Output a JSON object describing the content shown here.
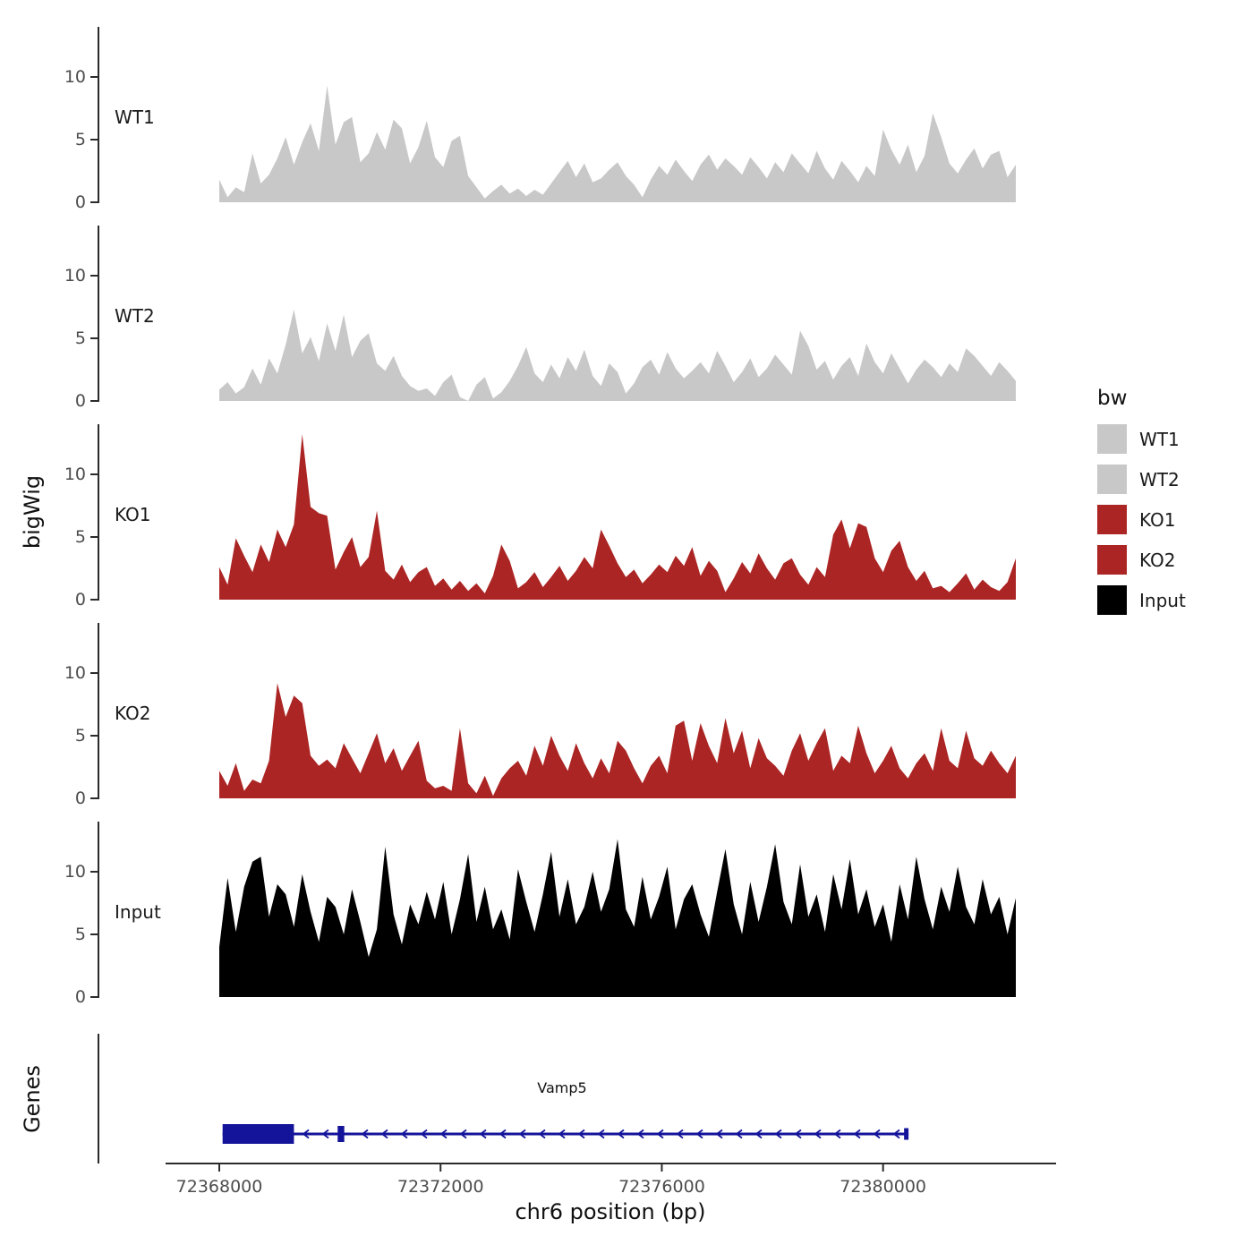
{
  "figure": {
    "y_axis_title": "bigWig",
    "genes_axis_title": "Genes",
    "x_axis_title": "chr6 position (bp)",
    "x_tick_labels": [
      "72368000",
      "72372000",
      "72376000",
      "72380000"
    ],
    "x_tick_values": [
      72368000,
      72372000,
      72376000,
      72380000
    ],
    "y_tick_values": [
      0,
      5,
      10
    ]
  },
  "legend": {
    "title": "bw",
    "items": [
      {
        "label": "WT1",
        "color": "#c8c8c8"
      },
      {
        "label": "WT2",
        "color": "#c8c8c8"
      },
      {
        "label": "KO1",
        "color": "#ab2524"
      },
      {
        "label": "KO2",
        "color": "#ab2524"
      },
      {
        "label": "Input",
        "color": "#000000"
      }
    ]
  },
  "chart_data": {
    "type": "area",
    "title": "",
    "xlabel": "chr6 position (bp)",
    "ylabel": "bigWig",
    "x_range": [
      72368000,
      72382400
    ],
    "ylim": [
      0,
      13.5
    ],
    "y_ticks": [
      0,
      5,
      10
    ],
    "tracks": [
      {
        "name": "WT1",
        "color": "#c8c8c8",
        "values": [
          1.8,
          0.4,
          1.2,
          0.8,
          3.9,
          1.5,
          2.2,
          3.5,
          5.2,
          3.0,
          4.8,
          6.3,
          4.1,
          9.3,
          4.6,
          6.4,
          6.8,
          3.2,
          3.9,
          5.6,
          4.2,
          6.6,
          5.9,
          3.1,
          4.4,
          6.5,
          3.6,
          2.8,
          4.9,
          5.3,
          2.1,
          1.2,
          0.3,
          0.9,
          1.4,
          0.7,
          1.1,
          0.5,
          1.0,
          0.6,
          1.5,
          2.4,
          3.3,
          2.0,
          3.1,
          1.6,
          1.9,
          2.6,
          3.2,
          2.1,
          1.4,
          0.4,
          1.8,
          2.9,
          2.2,
          3.4,
          2.5,
          1.7,
          3.0,
          3.8,
          2.6,
          3.5,
          2.9,
          2.2,
          3.6,
          2.8,
          1.9,
          3.2,
          2.4,
          3.9,
          3.1,
          2.3,
          4.1,
          2.7,
          1.8,
          3.3,
          2.5,
          1.6,
          2.9,
          2.1,
          5.8,
          4.2,
          3.0,
          4.6,
          2.4,
          3.7,
          7.1,
          5.2,
          3.1,
          2.3,
          3.4,
          4.3,
          2.7,
          3.8,
          4.1,
          2.0,
          3.0
        ]
      },
      {
        "name": "WT2",
        "color": "#c8c8c8",
        "values": [
          0.9,
          1.5,
          0.6,
          1.1,
          2.6,
          1.3,
          3.4,
          2.2,
          4.5,
          7.3,
          3.8,
          5.1,
          3.2,
          6.2,
          4.0,
          6.9,
          3.5,
          4.8,
          5.4,
          3.0,
          2.4,
          3.6,
          2.0,
          1.2,
          0.8,
          1.0,
          0.4,
          1.5,
          2.1,
          0.3,
          0.0,
          1.3,
          1.9,
          0.2,
          0.7,
          1.6,
          2.8,
          4.3,
          2.2,
          1.5,
          2.9,
          1.8,
          3.5,
          2.4,
          4.1,
          2.0,
          1.2,
          3.0,
          2.3,
          0.6,
          1.4,
          2.7,
          3.3,
          2.1,
          3.9,
          2.6,
          1.8,
          2.4,
          3.1,
          2.2,
          4.0,
          2.8,
          1.5,
          2.3,
          3.4,
          1.9,
          2.6,
          3.7,
          2.9,
          2.1,
          5.6,
          4.4,
          2.5,
          3.2,
          1.7,
          2.8,
          3.5,
          2.0,
          4.6,
          3.1,
          2.2,
          3.8,
          2.6,
          1.4,
          2.5,
          3.3,
          2.7,
          1.9,
          3.0,
          2.3,
          4.2,
          3.6,
          2.8,
          2.0,
          3.1,
          2.4,
          1.6
        ]
      },
      {
        "name": "KO1",
        "color": "#ab2524",
        "values": [
          2.6,
          1.2,
          4.9,
          3.5,
          2.2,
          4.4,
          3.0,
          5.6,
          4.2,
          6.0,
          13.2,
          7.4,
          6.9,
          6.7,
          2.4,
          3.8,
          5.0,
          2.6,
          3.4,
          7.1,
          2.3,
          1.6,
          2.8,
          1.4,
          2.2,
          2.6,
          1.1,
          1.7,
          0.8,
          1.5,
          0.7,
          1.3,
          0.5,
          1.9,
          4.4,
          3.1,
          0.9,
          1.4,
          2.2,
          1.0,
          1.8,
          2.7,
          1.5,
          2.3,
          3.4,
          2.5,
          5.6,
          4.3,
          2.9,
          1.8,
          2.4,
          1.3,
          2.0,
          2.8,
          2.2,
          3.5,
          2.7,
          4.2,
          1.9,
          3.1,
          2.3,
          0.6,
          1.7,
          3.0,
          2.1,
          3.7,
          2.5,
          1.6,
          2.9,
          3.3,
          2.0,
          1.2,
          2.6,
          1.8,
          5.2,
          6.4,
          4.1,
          6.1,
          5.8,
          3.3,
          2.2,
          3.9,
          4.7,
          2.6,
          1.5,
          2.3,
          0.9,
          1.1,
          0.6,
          1.3,
          2.1,
          0.8,
          1.6,
          1.0,
          0.7,
          1.4,
          3.3
        ]
      },
      {
        "name": "KO2",
        "color": "#ab2524",
        "values": [
          2.2,
          1.0,
          2.8,
          0.6,
          1.5,
          1.2,
          3.0,
          9.2,
          6.5,
          8.2,
          7.6,
          3.4,
          2.6,
          3.1,
          2.4,
          4.4,
          3.2,
          2.0,
          3.6,
          5.2,
          2.8,
          4.0,
          2.2,
          3.4,
          4.6,
          1.4,
          0.8,
          1.0,
          0.6,
          5.6,
          1.2,
          0.4,
          1.8,
          0.2,
          1.6,
          2.4,
          3.0,
          1.8,
          4.2,
          2.6,
          5.0,
          3.4,
          2.2,
          4.4,
          2.8,
          1.6,
          3.2,
          2.0,
          4.6,
          3.8,
          2.4,
          1.2,
          2.6,
          3.4,
          2.0,
          5.8,
          6.2,
          3.0,
          6.0,
          4.2,
          2.8,
          6.4,
          3.6,
          5.4,
          2.4,
          4.8,
          3.2,
          2.6,
          1.8,
          3.8,
          5.2,
          3.0,
          4.4,
          5.6,
          2.2,
          3.4,
          2.8,
          5.8,
          3.6,
          2.0,
          3.0,
          4.2,
          2.4,
          1.6,
          2.8,
          3.6,
          2.2,
          5.6,
          3.0,
          2.4,
          5.4,
          3.2,
          2.6,
          3.8,
          2.8,
          2.0,
          3.4
        ]
      },
      {
        "name": "Input",
        "color": "#000000",
        "values": [
          4.0,
          9.5,
          5.2,
          8.8,
          10.8,
          11.2,
          6.4,
          9.0,
          8.2,
          5.6,
          9.8,
          6.8,
          4.4,
          8.0,
          7.2,
          5.0,
          8.6,
          6.0,
          3.2,
          5.4,
          12.0,
          6.6,
          4.2,
          7.4,
          5.8,
          8.4,
          6.2,
          9.2,
          5.0,
          7.8,
          11.4,
          6.0,
          8.8,
          5.4,
          7.0,
          4.6,
          10.2,
          7.6,
          5.2,
          8.2,
          11.6,
          6.4,
          9.4,
          5.8,
          7.2,
          10.0,
          6.8,
          8.6,
          12.6,
          7.0,
          5.6,
          9.6,
          6.2,
          8.0,
          10.4,
          5.4,
          7.8,
          9.0,
          6.6,
          4.8,
          8.4,
          11.8,
          7.4,
          5.0,
          9.2,
          6.0,
          8.8,
          12.2,
          7.6,
          5.8,
          10.6,
          6.4,
          8.2,
          5.2,
          9.8,
          7.0,
          11.0,
          6.6,
          8.6,
          5.6,
          7.4,
          4.4,
          9.0,
          6.2,
          11.2,
          7.8,
          5.4,
          8.8,
          6.8,
          10.4,
          7.2,
          5.8,
          9.4,
          6.6,
          8.0,
          5.0,
          7.9
        ]
      }
    ],
    "gene": {
      "name": "Vamp5",
      "chrom": "chr6",
      "start": 72368060,
      "end": 72380460,
      "strand": "-",
      "color": "#14149b",
      "exons": [
        {
          "start": 72368060,
          "end": 72369350
        },
        {
          "start": 72370140,
          "end": 72370260
        },
        {
          "start": 72380380,
          "end": 72380460
        }
      ]
    }
  }
}
